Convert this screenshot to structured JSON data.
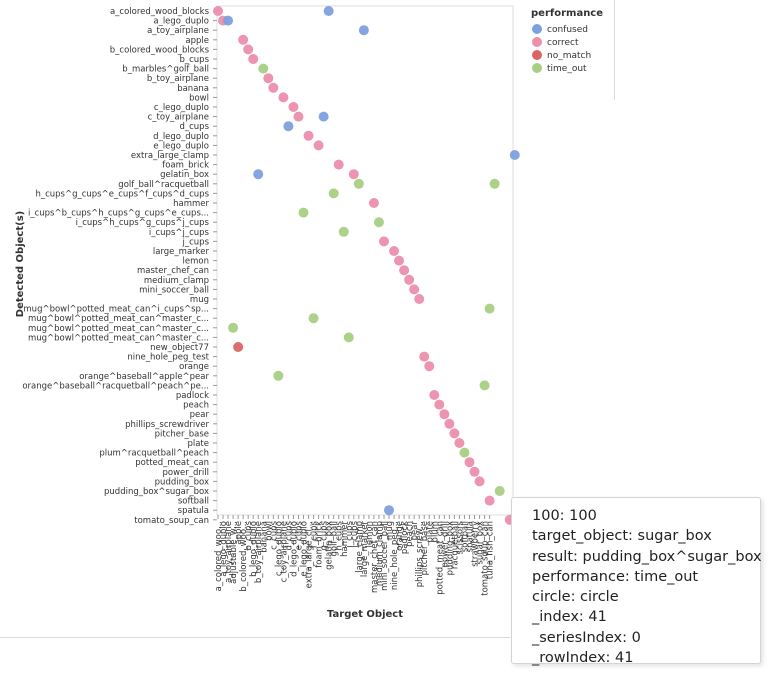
{
  "chart_data": {
    "type": "scatter",
    "xlabel": "Target Object",
    "ylabel": "Detected Object(s)",
    "x_categories": [
      "a_colored_woo...",
      "a_lego_duplo",
      "a_toy_airplane",
      "adjustable_w...",
      "apple",
      "b_colored_woo...",
      "b_cups",
      "b_lego_duplo",
      "b_toy_airplane",
      "banana",
      "bowl",
      "c_cups",
      "c_lego_duplo",
      "c_toy_airplane",
      "d_cups",
      "d_lego_duplo",
      "e_cups",
      "e_lego_duplo",
      "extra_large_cl...",
      "f_cups",
      "foam_brick",
      "g_cups",
      "gelatin_box",
      "golf_ball",
      "h_cups",
      "hammer",
      "i_cups",
      "j_cups",
      "large_clamp",
      "large_marker",
      "lemon",
      "master_chef_can",
      "medium_clamp",
      "mini_soccer_ball",
      "mug",
      "nine_hole_peg...",
      "orange",
      "padlock",
      "peach",
      "pear",
      "phillips_screw...",
      "pitcher_base",
      "plate",
      "plum",
      "potted_meat_can",
      "power_drill",
      "pudding_box",
      "racquetball",
      "scissors",
      "softball",
      "spatula",
      "strawberry",
      "sugar_box",
      "tomato_soup_can",
      "tuna_fish_can"
    ],
    "y_categories": [
      "a_colored_wood_blocks",
      "a_lego_duplo",
      "a_toy_airplane",
      "apple",
      "b_colored_wood_blocks",
      "b_cups",
      "b_marbles^golf_ball",
      "b_toy_airplane",
      "banana",
      "bowl",
      "c_lego_duplo",
      "c_toy_airplane",
      "d_cups",
      "d_lego_duplo",
      "e_lego_duplo",
      "extra_large_clamp",
      "foam_brick",
      "gelatin_box",
      "golf_ball^racquetball",
      "h_cups^g_cups^e_cups^f_cups^d_cups",
      "hammer",
      "i_cups^b_cups^h_cups^g_cups^e_cups...",
      "i_cups^h_cups^g_cups^j_cups",
      "i_cups^j_cups",
      "j_cups",
      "large_marker",
      "lemon",
      "master_chef_can",
      "medium_clamp",
      "mini_soccer_ball",
      "mug",
      "mug^bowl^potted_meat_can^i_cups^sp...",
      "mug^bowl^potted_meat_can^master_c...",
      "mug^bowl^potted_meat_can^master_c...",
      "mug^bowl^potted_meat_can^master_c...",
      "new_object77",
      "nine_hole_peg_test",
      "orange",
      "orange^baseball^apple^pear",
      "orange^baseball^racquetball^peach^pe...",
      "padlock",
      "peach",
      "pear",
      "phillips_screwdriver",
      "pitcher_base",
      "plate",
      "plum^racquetball^peach",
      "potted_meat_can",
      "power_drill",
      "pudding_box",
      "pudding_box^sugar_box",
      "softball",
      "spatula",
      "tomato_soup_can"
    ],
    "legend": {
      "title": "performance",
      "position": "top-right",
      "entries": [
        {
          "name": "confused",
          "color": "#7da0de"
        },
        {
          "name": "correct",
          "color": "#ec8eac"
        },
        {
          "name": "no_match",
          "color": "#da6465"
        },
        {
          "name": "time_out",
          "color": "#a8cf82"
        }
      ]
    },
    "points": [
      {
        "x": 0,
        "y": 0,
        "performance": "correct"
      },
      {
        "x": 1,
        "y": 1,
        "performance": "correct"
      },
      {
        "x": 2,
        "y": 1,
        "performance": "confused"
      },
      {
        "x": 22,
        "y": 0,
        "performance": "confused"
      },
      {
        "x": 29,
        "y": 2,
        "performance": "confused"
      },
      {
        "x": 5,
        "y": 3,
        "performance": "correct"
      },
      {
        "x": 6,
        "y": 4,
        "performance": "correct"
      },
      {
        "x": 7,
        "y": 5,
        "performance": "correct"
      },
      {
        "x": 9,
        "y": 6,
        "performance": "time_out"
      },
      {
        "x": 10,
        "y": 7,
        "performance": "correct"
      },
      {
        "x": 11,
        "y": 8,
        "performance": "correct"
      },
      {
        "x": 13,
        "y": 9,
        "performance": "correct"
      },
      {
        "x": 15,
        "y": 10,
        "performance": "correct"
      },
      {
        "x": 16,
        "y": 11,
        "performance": "correct"
      },
      {
        "x": 21,
        "y": 11,
        "performance": "confused"
      },
      {
        "x": 14,
        "y": 12,
        "performance": "confused"
      },
      {
        "x": 18,
        "y": 13,
        "performance": "correct"
      },
      {
        "x": 20,
        "y": 14,
        "performance": "correct"
      },
      {
        "x": 59,
        "y": 15,
        "performance": "confused"
      },
      {
        "x": 24,
        "y": 16,
        "performance": "correct"
      },
      {
        "x": 8,
        "y": 17,
        "performance": "confused"
      },
      {
        "x": 27,
        "y": 17,
        "performance": "correct"
      },
      {
        "x": 28,
        "y": 18,
        "performance": "time_out"
      },
      {
        "x": 55,
        "y": 18,
        "performance": "time_out"
      },
      {
        "x": 23,
        "y": 19,
        "performance": "time_out"
      },
      {
        "x": 31,
        "y": 20,
        "performance": "correct"
      },
      {
        "x": 17,
        "y": 21,
        "performance": "time_out"
      },
      {
        "x": 32,
        "y": 22,
        "performance": "time_out"
      },
      {
        "x": 25,
        "y": 23,
        "performance": "time_out"
      },
      {
        "x": 33,
        "y": 24,
        "performance": "correct"
      },
      {
        "x": 35,
        "y": 25,
        "performance": "correct"
      },
      {
        "x": 36,
        "y": 26,
        "performance": "correct"
      },
      {
        "x": 37,
        "y": 27,
        "performance": "correct"
      },
      {
        "x": 38,
        "y": 28,
        "performance": "correct"
      },
      {
        "x": 39,
        "y": 29,
        "performance": "correct"
      },
      {
        "x": 40,
        "y": 30,
        "performance": "correct"
      },
      {
        "x": 54,
        "y": 31,
        "performance": "time_out"
      },
      {
        "x": 19,
        "y": 32,
        "performance": "time_out"
      },
      {
        "x": 3,
        "y": 33,
        "performance": "time_out"
      },
      {
        "x": 26,
        "y": 34,
        "performance": "time_out"
      },
      {
        "x": 4,
        "y": 35,
        "performance": "no_match"
      },
      {
        "x": 41,
        "y": 36,
        "performance": "correct"
      },
      {
        "x": 42,
        "y": 37,
        "performance": "correct"
      },
      {
        "x": 12,
        "y": 38,
        "performance": "time_out"
      },
      {
        "x": 53,
        "y": 39,
        "performance": "time_out"
      },
      {
        "x": 43,
        "y": 40,
        "performance": "correct"
      },
      {
        "x": 44,
        "y": 41,
        "performance": "correct"
      },
      {
        "x": 45,
        "y": 42,
        "performance": "correct"
      },
      {
        "x": 46,
        "y": 43,
        "performance": "correct"
      },
      {
        "x": 47,
        "y": 44,
        "performance": "correct"
      },
      {
        "x": 48,
        "y": 45,
        "performance": "correct"
      },
      {
        "x": 49,
        "y": 46,
        "performance": "time_out"
      },
      {
        "x": 50,
        "y": 47,
        "performance": "correct"
      },
      {
        "x": 51,
        "y": 48,
        "performance": "correct"
      },
      {
        "x": 52,
        "y": 49,
        "performance": "correct"
      },
      {
        "x": 56,
        "y": 50,
        "performance": "time_out"
      },
      {
        "x": 54,
        "y": 51,
        "performance": "correct"
      },
      {
        "x": 34,
        "y": 52,
        "performance": "confused"
      },
      {
        "x": 58,
        "y": 53,
        "performance": "correct"
      }
    ]
  },
  "tooltip": {
    "lines": [
      "100: 100",
      "target_object: sugar_box",
      "result: pudding_box^sugar_box",
      "performance: time_out",
      "circle: circle",
      "_index: 41",
      "_seriesIndex: 0",
      "_rowIndex: 41"
    ]
  }
}
